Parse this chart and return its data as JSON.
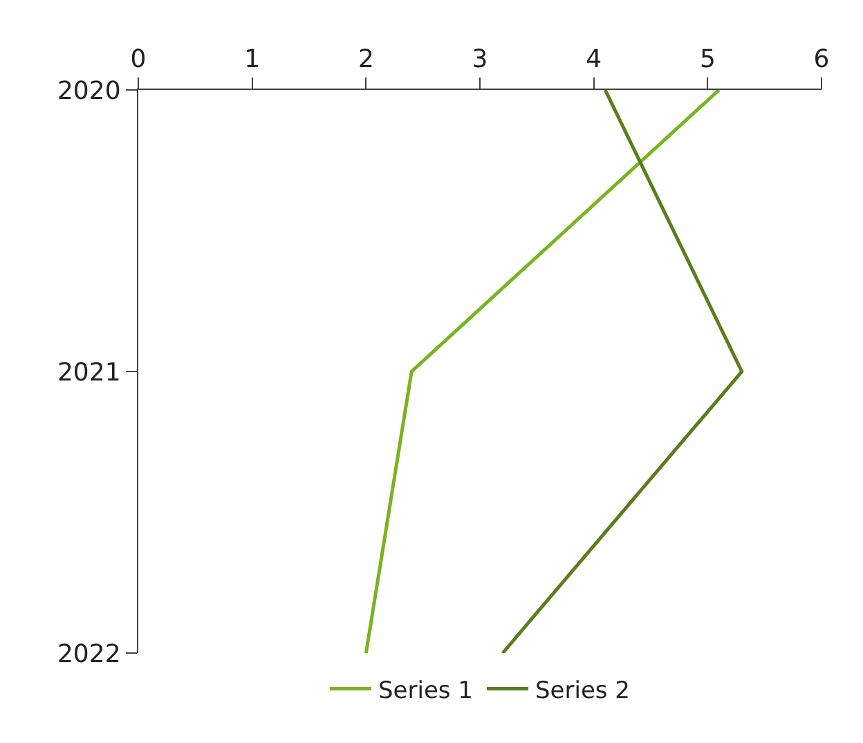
{
  "chart_data": {
    "type": "line",
    "orientation": "horizontal",
    "categories": [
      "2020",
      "2021",
      "2022"
    ],
    "series": [
      {
        "name": "Series 1",
        "color": "#78b41e",
        "values": [
          5.1,
          2.4,
          2.0
        ]
      },
      {
        "name": "Series 2",
        "color": "#5a7d1e",
        "values": [
          4.1,
          5.3,
          3.2
        ]
      }
    ],
    "xlim": [
      0,
      6
    ],
    "xticks": [
      0,
      1,
      2,
      3,
      4,
      5,
      6
    ],
    "grid": false,
    "legend": "bottom",
    "marker": "none",
    "line_style": "solid"
  }
}
